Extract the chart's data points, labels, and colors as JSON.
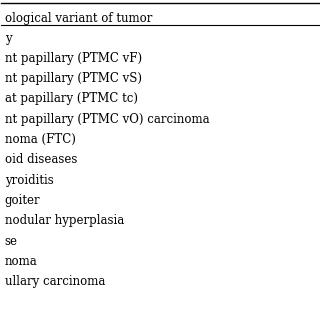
{
  "header": "ological variant of tumor",
  "rows": [
    "y",
    "nt papillary (PTMC vF)",
    "nt papillary (PTMC vS)",
    "at papillary (PTMC tc)",
    "nt papillary (PTMC vO) carcinoma",
    "noma (FTC)",
    "oid diseases",
    "yroiditis",
    "goiter",
    "nodular hyperplasia",
    "se",
    "noma",
    "ullary carcinoma"
  ],
  "bg_color": "#ffffff",
  "text_color": "#000000",
  "header_fontsize": 8.5,
  "row_fontsize": 8.5,
  "line_color": "#000000"
}
